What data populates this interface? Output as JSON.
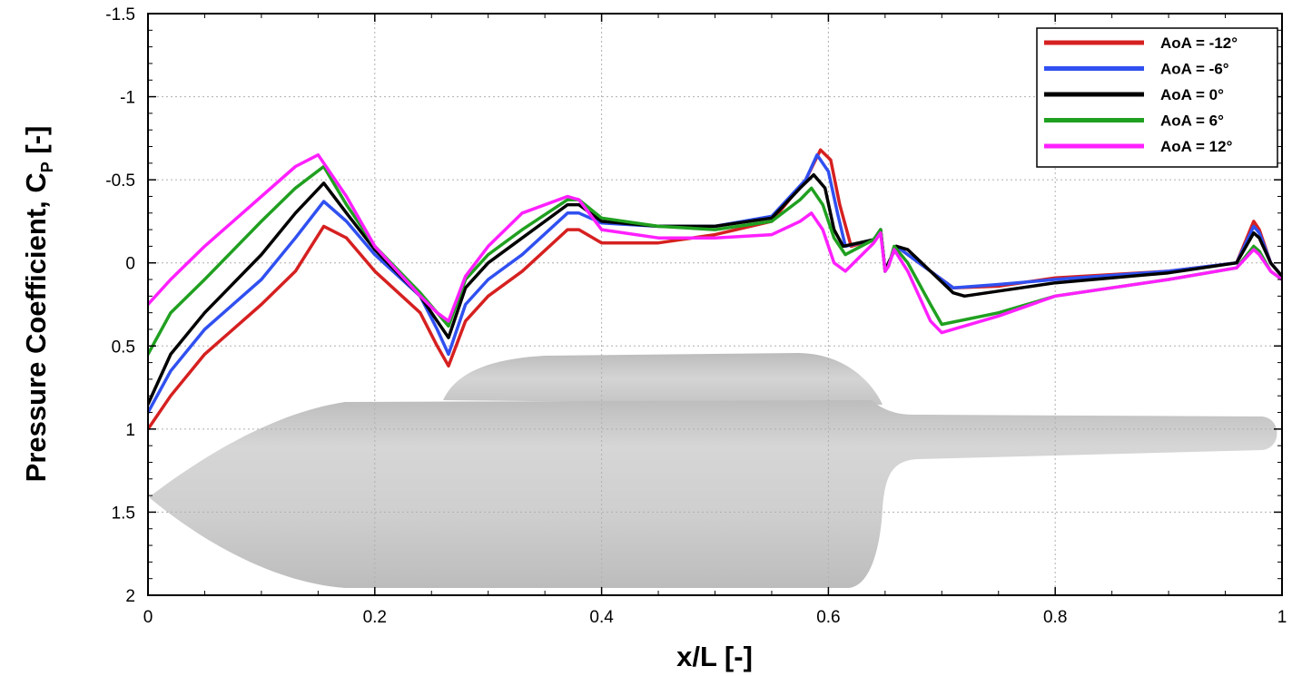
{
  "chart_data": {
    "type": "line",
    "xlabel": "x/L [-]",
    "ylabel": "Pressure Coefficient, C",
    "ylabel_sub": "P",
    "ylabel_suffix": " [-]",
    "xlim": [
      0,
      1
    ],
    "ylim": [
      -1.5,
      2
    ],
    "y_inverted": true,
    "grid": true,
    "legend_position": "top-right",
    "x_ticks": [
      0,
      0.2,
      0.4,
      0.6,
      0.8,
      1
    ],
    "x_tick_labels": [
      "0",
      "0.2",
      "0.4",
      "0.6",
      "0.8",
      "1"
    ],
    "y_ticks": [
      -1.5,
      -1,
      -0.5,
      0,
      0.5,
      1,
      1.5,
      2
    ],
    "y_tick_labels": [
      "-1.5",
      "-1",
      "-0.5",
      "0",
      "0.5",
      "1",
      "1.5",
      "2"
    ],
    "background_shape": "hull-silhouette",
    "series": [
      {
        "name": "AoA = -12°",
        "color": "#d62020",
        "x": [
          0,
          0.02,
          0.05,
          0.1,
          0.13,
          0.155,
          0.175,
          0.2,
          0.24,
          0.255,
          0.265,
          0.28,
          0.3,
          0.33,
          0.37,
          0.38,
          0.4,
          0.45,
          0.5,
          0.55,
          0.58,
          0.593,
          0.602,
          0.61,
          0.62,
          0.64,
          0.646,
          0.65,
          0.653,
          0.66,
          0.67,
          0.69,
          0.71,
          0.75,
          0.8,
          0.9,
          0.96,
          0.975,
          0.98,
          0.99,
          1
        ],
        "y": [
          1.0,
          0.8,
          0.55,
          0.25,
          0.05,
          -0.22,
          -0.15,
          0.05,
          0.3,
          0.5,
          0.62,
          0.35,
          0.2,
          0.05,
          -0.2,
          -0.2,
          -0.12,
          -0.12,
          -0.17,
          -0.25,
          -0.5,
          -0.68,
          -0.62,
          -0.35,
          -0.1,
          -0.14,
          -0.2,
          0.05,
          0.0,
          -0.1,
          -0.05,
          0.05,
          0.15,
          0.14,
          0.09,
          0.05,
          0.0,
          -0.25,
          -0.2,
          0.0,
          0.08
        ]
      },
      {
        "name": "AoA = -6°",
        "color": "#3050f0",
        "x": [
          0,
          0.02,
          0.05,
          0.1,
          0.13,
          0.155,
          0.175,
          0.2,
          0.24,
          0.255,
          0.265,
          0.28,
          0.3,
          0.33,
          0.37,
          0.38,
          0.4,
          0.45,
          0.5,
          0.55,
          0.58,
          0.59,
          0.6,
          0.608,
          0.615,
          0.64,
          0.646,
          0.65,
          0.653,
          0.66,
          0.67,
          0.69,
          0.71,
          0.75,
          0.8,
          0.9,
          0.96,
          0.975,
          0.98,
          0.99,
          1
        ],
        "y": [
          0.9,
          0.65,
          0.4,
          0.1,
          -0.15,
          -0.37,
          -0.25,
          -0.05,
          0.2,
          0.4,
          0.55,
          0.25,
          0.1,
          -0.05,
          -0.3,
          -0.3,
          -0.24,
          -0.22,
          -0.22,
          -0.28,
          -0.5,
          -0.65,
          -0.55,
          -0.3,
          -0.1,
          -0.14,
          -0.2,
          0.05,
          0.0,
          -0.1,
          -0.05,
          0.05,
          0.15,
          0.13,
          0.1,
          0.05,
          0.0,
          -0.22,
          -0.18,
          0.0,
          0.08
        ]
      },
      {
        "name": "AoA = 0°",
        "color": "#000000",
        "x": [
          0,
          0.02,
          0.05,
          0.1,
          0.13,
          0.155,
          0.175,
          0.2,
          0.24,
          0.255,
          0.265,
          0.28,
          0.3,
          0.33,
          0.37,
          0.38,
          0.4,
          0.45,
          0.5,
          0.55,
          0.575,
          0.587,
          0.597,
          0.605,
          0.613,
          0.64,
          0.646,
          0.65,
          0.653,
          0.66,
          0.67,
          0.69,
          0.71,
          0.72,
          0.75,
          0.8,
          0.9,
          0.96,
          0.975,
          0.98,
          0.99,
          1
        ],
        "y": [
          0.85,
          0.55,
          0.3,
          -0.05,
          -0.3,
          -0.48,
          -0.3,
          -0.08,
          0.2,
          0.35,
          0.45,
          0.15,
          0.0,
          -0.15,
          -0.35,
          -0.35,
          -0.25,
          -0.22,
          -0.22,
          -0.27,
          -0.45,
          -0.53,
          -0.45,
          -0.2,
          -0.1,
          -0.14,
          -0.2,
          0.05,
          0.0,
          -0.1,
          -0.08,
          0.05,
          0.18,
          0.2,
          0.17,
          0.12,
          0.06,
          0.0,
          -0.18,
          -0.15,
          0.0,
          0.08
        ]
      },
      {
        "name": "AoA = 6°",
        "color": "#20a020",
        "x": [
          0,
          0.02,
          0.05,
          0.1,
          0.13,
          0.155,
          0.175,
          0.2,
          0.24,
          0.255,
          0.265,
          0.28,
          0.3,
          0.33,
          0.37,
          0.38,
          0.4,
          0.45,
          0.5,
          0.55,
          0.575,
          0.585,
          0.595,
          0.605,
          0.615,
          0.64,
          0.646,
          0.65,
          0.653,
          0.658,
          0.67,
          0.69,
          0.7,
          0.75,
          0.8,
          0.9,
          0.96,
          0.975,
          0.98,
          0.99,
          1
        ],
        "y": [
          0.55,
          0.3,
          0.1,
          -0.25,
          -0.45,
          -0.58,
          -0.35,
          -0.1,
          0.18,
          0.3,
          0.38,
          0.1,
          -0.05,
          -0.2,
          -0.38,
          -0.38,
          -0.27,
          -0.22,
          -0.2,
          -0.25,
          -0.38,
          -0.45,
          -0.35,
          -0.15,
          -0.05,
          -0.14,
          -0.2,
          0.05,
          0.02,
          -0.1,
          0.0,
          0.25,
          0.37,
          0.3,
          0.2,
          0.1,
          0.03,
          -0.1,
          -0.07,
          0.05,
          0.1
        ]
      },
      {
        "name": "AoA = 12°",
        "color": "#ff20ff",
        "x": [
          0,
          0.02,
          0.05,
          0.1,
          0.13,
          0.15,
          0.175,
          0.2,
          0.24,
          0.255,
          0.265,
          0.28,
          0.3,
          0.33,
          0.37,
          0.38,
          0.4,
          0.45,
          0.5,
          0.55,
          0.575,
          0.585,
          0.595,
          0.605,
          0.615,
          0.64,
          0.646,
          0.65,
          0.653,
          0.658,
          0.67,
          0.69,
          0.7,
          0.75,
          0.8,
          0.9,
          0.96,
          0.975,
          0.98,
          0.99,
          1
        ],
        "y": [
          0.25,
          0.1,
          -0.1,
          -0.4,
          -0.58,
          -0.65,
          -0.4,
          -0.1,
          0.2,
          0.3,
          0.35,
          0.08,
          -0.1,
          -0.3,
          -0.4,
          -0.38,
          -0.2,
          -0.15,
          -0.15,
          -0.17,
          -0.25,
          -0.3,
          -0.2,
          0.0,
          0.05,
          -0.12,
          -0.18,
          0.05,
          0.02,
          -0.08,
          0.05,
          0.35,
          0.42,
          0.32,
          0.2,
          0.1,
          0.03,
          -0.08,
          -0.05,
          0.05,
          0.1
        ]
      }
    ]
  }
}
